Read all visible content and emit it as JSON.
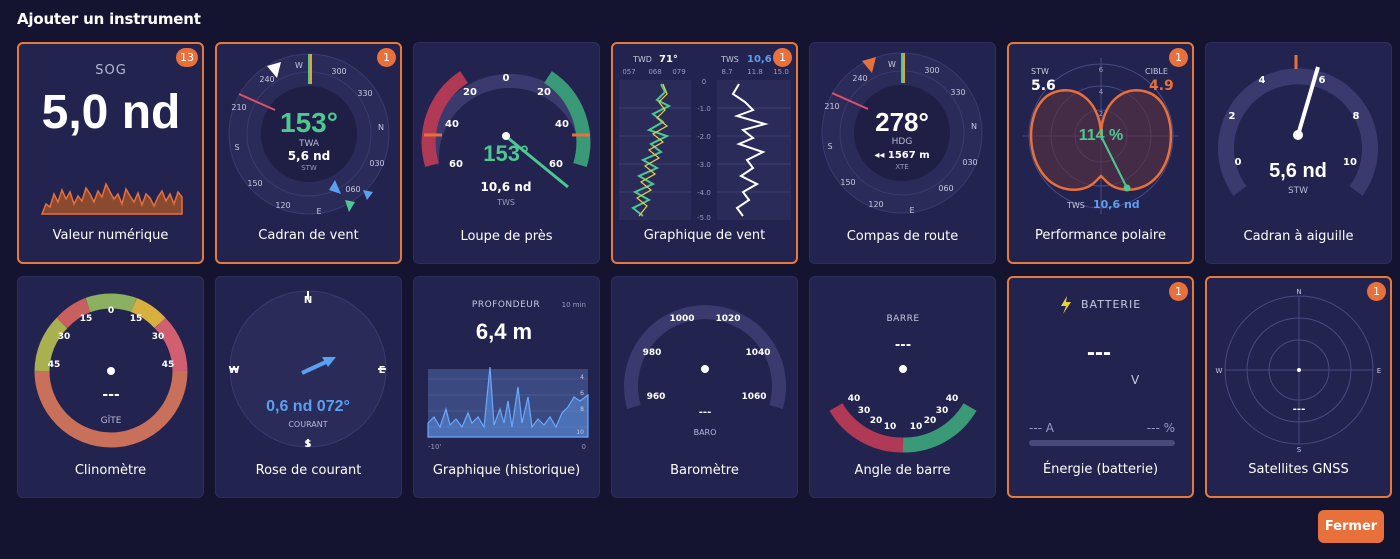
{
  "dialog": {
    "title": "Ajouter un instrument",
    "close_label": "Fermer"
  },
  "colors": {
    "accent": "#e8703a",
    "green": "#4dc890",
    "red": "#c23a55",
    "blue": "#5aa0f0",
    "card": "#232350"
  },
  "cards": [
    {
      "label": "Valeur numérique",
      "badge": "13",
      "metric": "SOG",
      "value": "5,0 nd"
    },
    {
      "label": "Cadran de vent",
      "badge": "1",
      "angle": "153°",
      "sub": "TWA",
      "speed": "5,6 nd",
      "unit": "STW",
      "ticks": [
        "W",
        "300",
        "330",
        "N",
        "030",
        "060",
        "E",
        "120",
        "150",
        "S",
        "210",
        "240"
      ]
    },
    {
      "label": "Loupe de près",
      "angle": "153°",
      "speed": "10,6 nd",
      "unit": "TWS",
      "ticks": [
        "0",
        "20",
        "20",
        "40",
        "40",
        "60",
        "60"
      ]
    },
    {
      "label": "Graphique de vent",
      "badge": "1",
      "twd_label": "TWD",
      "twd": "71°",
      "tws_label": "TWS",
      "tws": "10,6",
      "twd_axis": [
        "057",
        "068",
        "079"
      ],
      "tws_axis": [
        "8.7",
        "11.8",
        "15.0"
      ],
      "time_axis": [
        "0",
        "-1.0",
        "-2.0",
        "-3.0",
        "-4.0",
        "-5.0"
      ]
    },
    {
      "label": "Compas de route",
      "heading": "278°",
      "sub": "HDG",
      "xte": "◂◂ 1567 m",
      "xte_label": "XTE",
      "ticks": [
        "W",
        "300",
        "330",
        "N",
        "030",
        "060",
        "E",
        "120",
        "150",
        "S",
        "210",
        "240"
      ]
    },
    {
      "label": "Performance polaire",
      "badge": "1",
      "stw_label": "STW",
      "stw": "5.6",
      "target_label": "CIBLE",
      "target": "4.9",
      "percent": "114 %",
      "tws_label": "TWS",
      "tws": "10,6 nd",
      "rings": [
        "6",
        "4",
        "2"
      ]
    },
    {
      "label": "Cadran à aiguille",
      "value": "5,6 nd",
      "unit": "STW",
      "ticks": [
        "0",
        "2",
        "4",
        "6",
        "8",
        "10"
      ]
    },
    {
      "label": "Clinomètre",
      "value": "---",
      "unit": "GÎTE",
      "ticks": [
        "0",
        "15",
        "15",
        "30",
        "30",
        "45",
        "45"
      ]
    },
    {
      "label": "Rose de courant",
      "value": "0,6 nd  072°",
      "unit": "COURANT",
      "ticks": [
        "N",
        "E",
        "S",
        "W"
      ]
    },
    {
      "label": "Graphique (historique)",
      "metric": "PROFONDEUR",
      "range": "10 min",
      "value": "6,4 m",
      "y_axis": [
        "4",
        "6",
        "8",
        "10"
      ],
      "x_axis": [
        "-10'",
        "0"
      ]
    },
    {
      "label": "Baromètre",
      "value": "---",
      "unit": "BARO",
      "ticks": [
        "960",
        "980",
        "1000",
        "1020",
        "1040",
        "1060"
      ]
    },
    {
      "label": "Angle de barre",
      "metric": "BARRE",
      "value": "---",
      "ticks": [
        "40",
        "30",
        "20",
        "10",
        "10",
        "20",
        "30",
        "40"
      ]
    },
    {
      "label": "Énergie (batterie)",
      "badge": "1",
      "metric": "BATTERIE",
      "value": "---",
      "unit": "V",
      "amps": "--- A",
      "percent": "--- %"
    },
    {
      "label": "Satellites GNSS",
      "badge": "1",
      "value": "---",
      "ticks": [
        "N",
        "E",
        "S",
        "W"
      ]
    }
  ]
}
